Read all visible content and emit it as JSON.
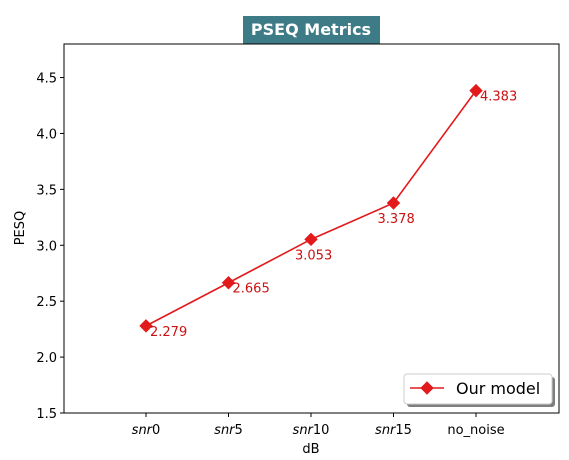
{
  "chart_data": {
    "type": "line",
    "title": "PSEQ Metrics",
    "xlabel": "dB",
    "ylabel": "PESQ",
    "categories": [
      {
        "name": "snr",
        "sub": "0"
      },
      {
        "name": "snr",
        "sub": "5"
      },
      {
        "name": "snr",
        "sub": "10"
      },
      {
        "name": "snr",
        "sub": "15"
      },
      {
        "name": "no_noise",
        "sub": ""
      }
    ],
    "series": [
      {
        "name": "Our model",
        "values": [
          2.279,
          2.665,
          3.053,
          3.378,
          4.383
        ],
        "labels": [
          "2.279",
          "2.665",
          "3.053",
          "3.378",
          "4.383"
        ],
        "color": "#e31a1c",
        "marker": "diamond"
      }
    ],
    "ylim": [
      1.5,
      4.8
    ],
    "yticks": [
      "1.5",
      "2.0",
      "2.5",
      "3.0",
      "3.5",
      "4.0",
      "4.5"
    ],
    "grid": false,
    "legend_position": "lower-right",
    "title_bg": "#3d7b86",
    "label_color": "#cc1111"
  }
}
